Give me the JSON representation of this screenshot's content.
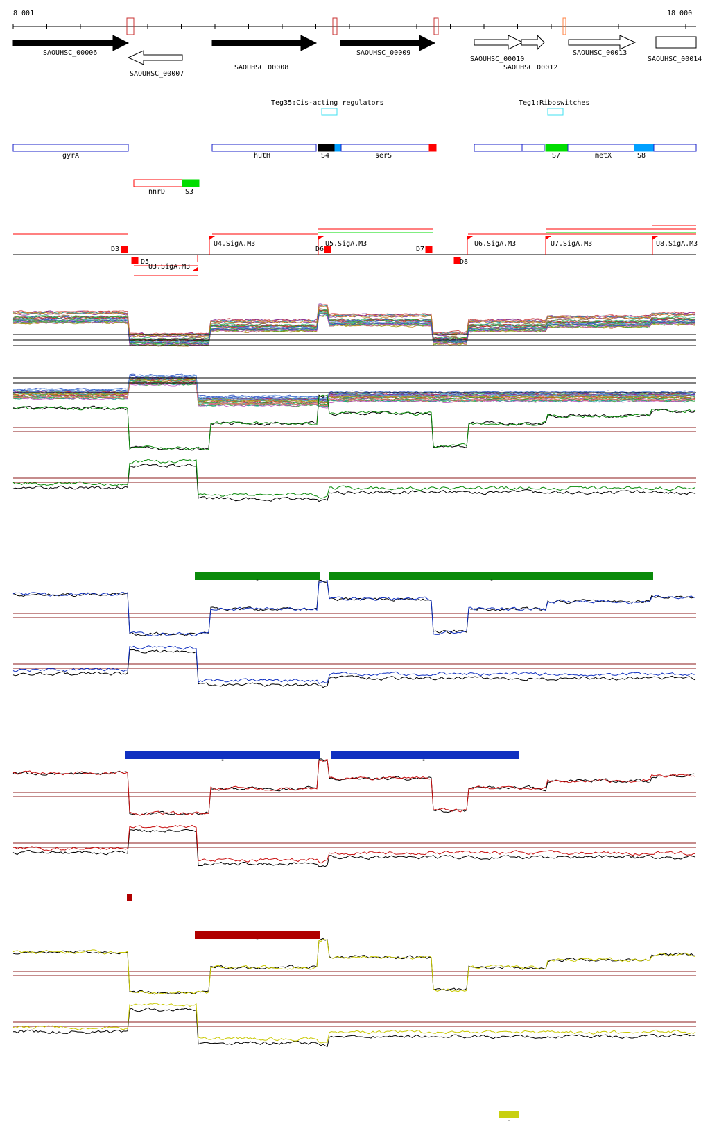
{
  "ruler": {
    "start_label": "8 001",
    "end_label": "18 000"
  },
  "colors": {
    "gene_fill": "#000000",
    "gene_outline": "#000000",
    "region_outline": "#1a22c8",
    "red": "#ff0000",
    "green_mark": "#00dd00",
    "blue_mark": "#00a0ff",
    "cyan": "#40e0f0",
    "cond1": "#0a8a0a",
    "cond2": "#1030c0",
    "cond3": "#c81010",
    "cond4": "#c8c800",
    "threshold": "#8b1a1a",
    "dark_red_bar": "#b00000",
    "yellow_bar": "#c8d010"
  },
  "genes": [
    {
      "label": "SAOUHSC_00006",
      "strand": "+",
      "filled": true
    },
    {
      "label": "SAOUHSC_00007",
      "strand": "-",
      "filled": false
    },
    {
      "label": "SAOUHSC_00008",
      "strand": "+",
      "filled": true
    },
    {
      "label": "SAOUHSC_00009",
      "strand": "+",
      "filled": true
    },
    {
      "label": "SAOUHSC_00010",
      "strand": "+",
      "filled": false
    },
    {
      "label": "SAOUHSC_00012",
      "strand": "+",
      "filled": false
    },
    {
      "label": "SAOUHSC_00013",
      "strand": "+",
      "filled": false
    },
    {
      "label": "SAOUHSC_00014",
      "strand": "+",
      "filled": false
    }
  ],
  "regulators": [
    {
      "label": "Teg35:Cis-acting regulators"
    },
    {
      "label": "Teg1:Riboswitches"
    }
  ],
  "regions": [
    {
      "label": "gyrA"
    },
    {
      "label": "hutH"
    },
    {
      "label": "S4"
    },
    {
      "label": "serS"
    },
    {
      "label": "S7"
    },
    {
      "label": "metX"
    },
    {
      "label": "S8"
    },
    {
      "label": "nnrD"
    },
    {
      "label": "S3"
    }
  ],
  "tss": [
    {
      "label": "D3"
    },
    {
      "label": "D5"
    },
    {
      "label": "U3.SigA.M3"
    },
    {
      "label": "U4.SigA.M3"
    },
    {
      "label": "D6"
    },
    {
      "label": "U5.SigA.M3"
    },
    {
      "label": "D7"
    },
    {
      "label": "D8"
    },
    {
      "label": "U6.SigA.M3"
    },
    {
      "label": "U7.SigA.M3"
    },
    {
      "label": "U8.SigA.M3"
    }
  ],
  "bar_labels": {
    "dash": "-"
  }
}
